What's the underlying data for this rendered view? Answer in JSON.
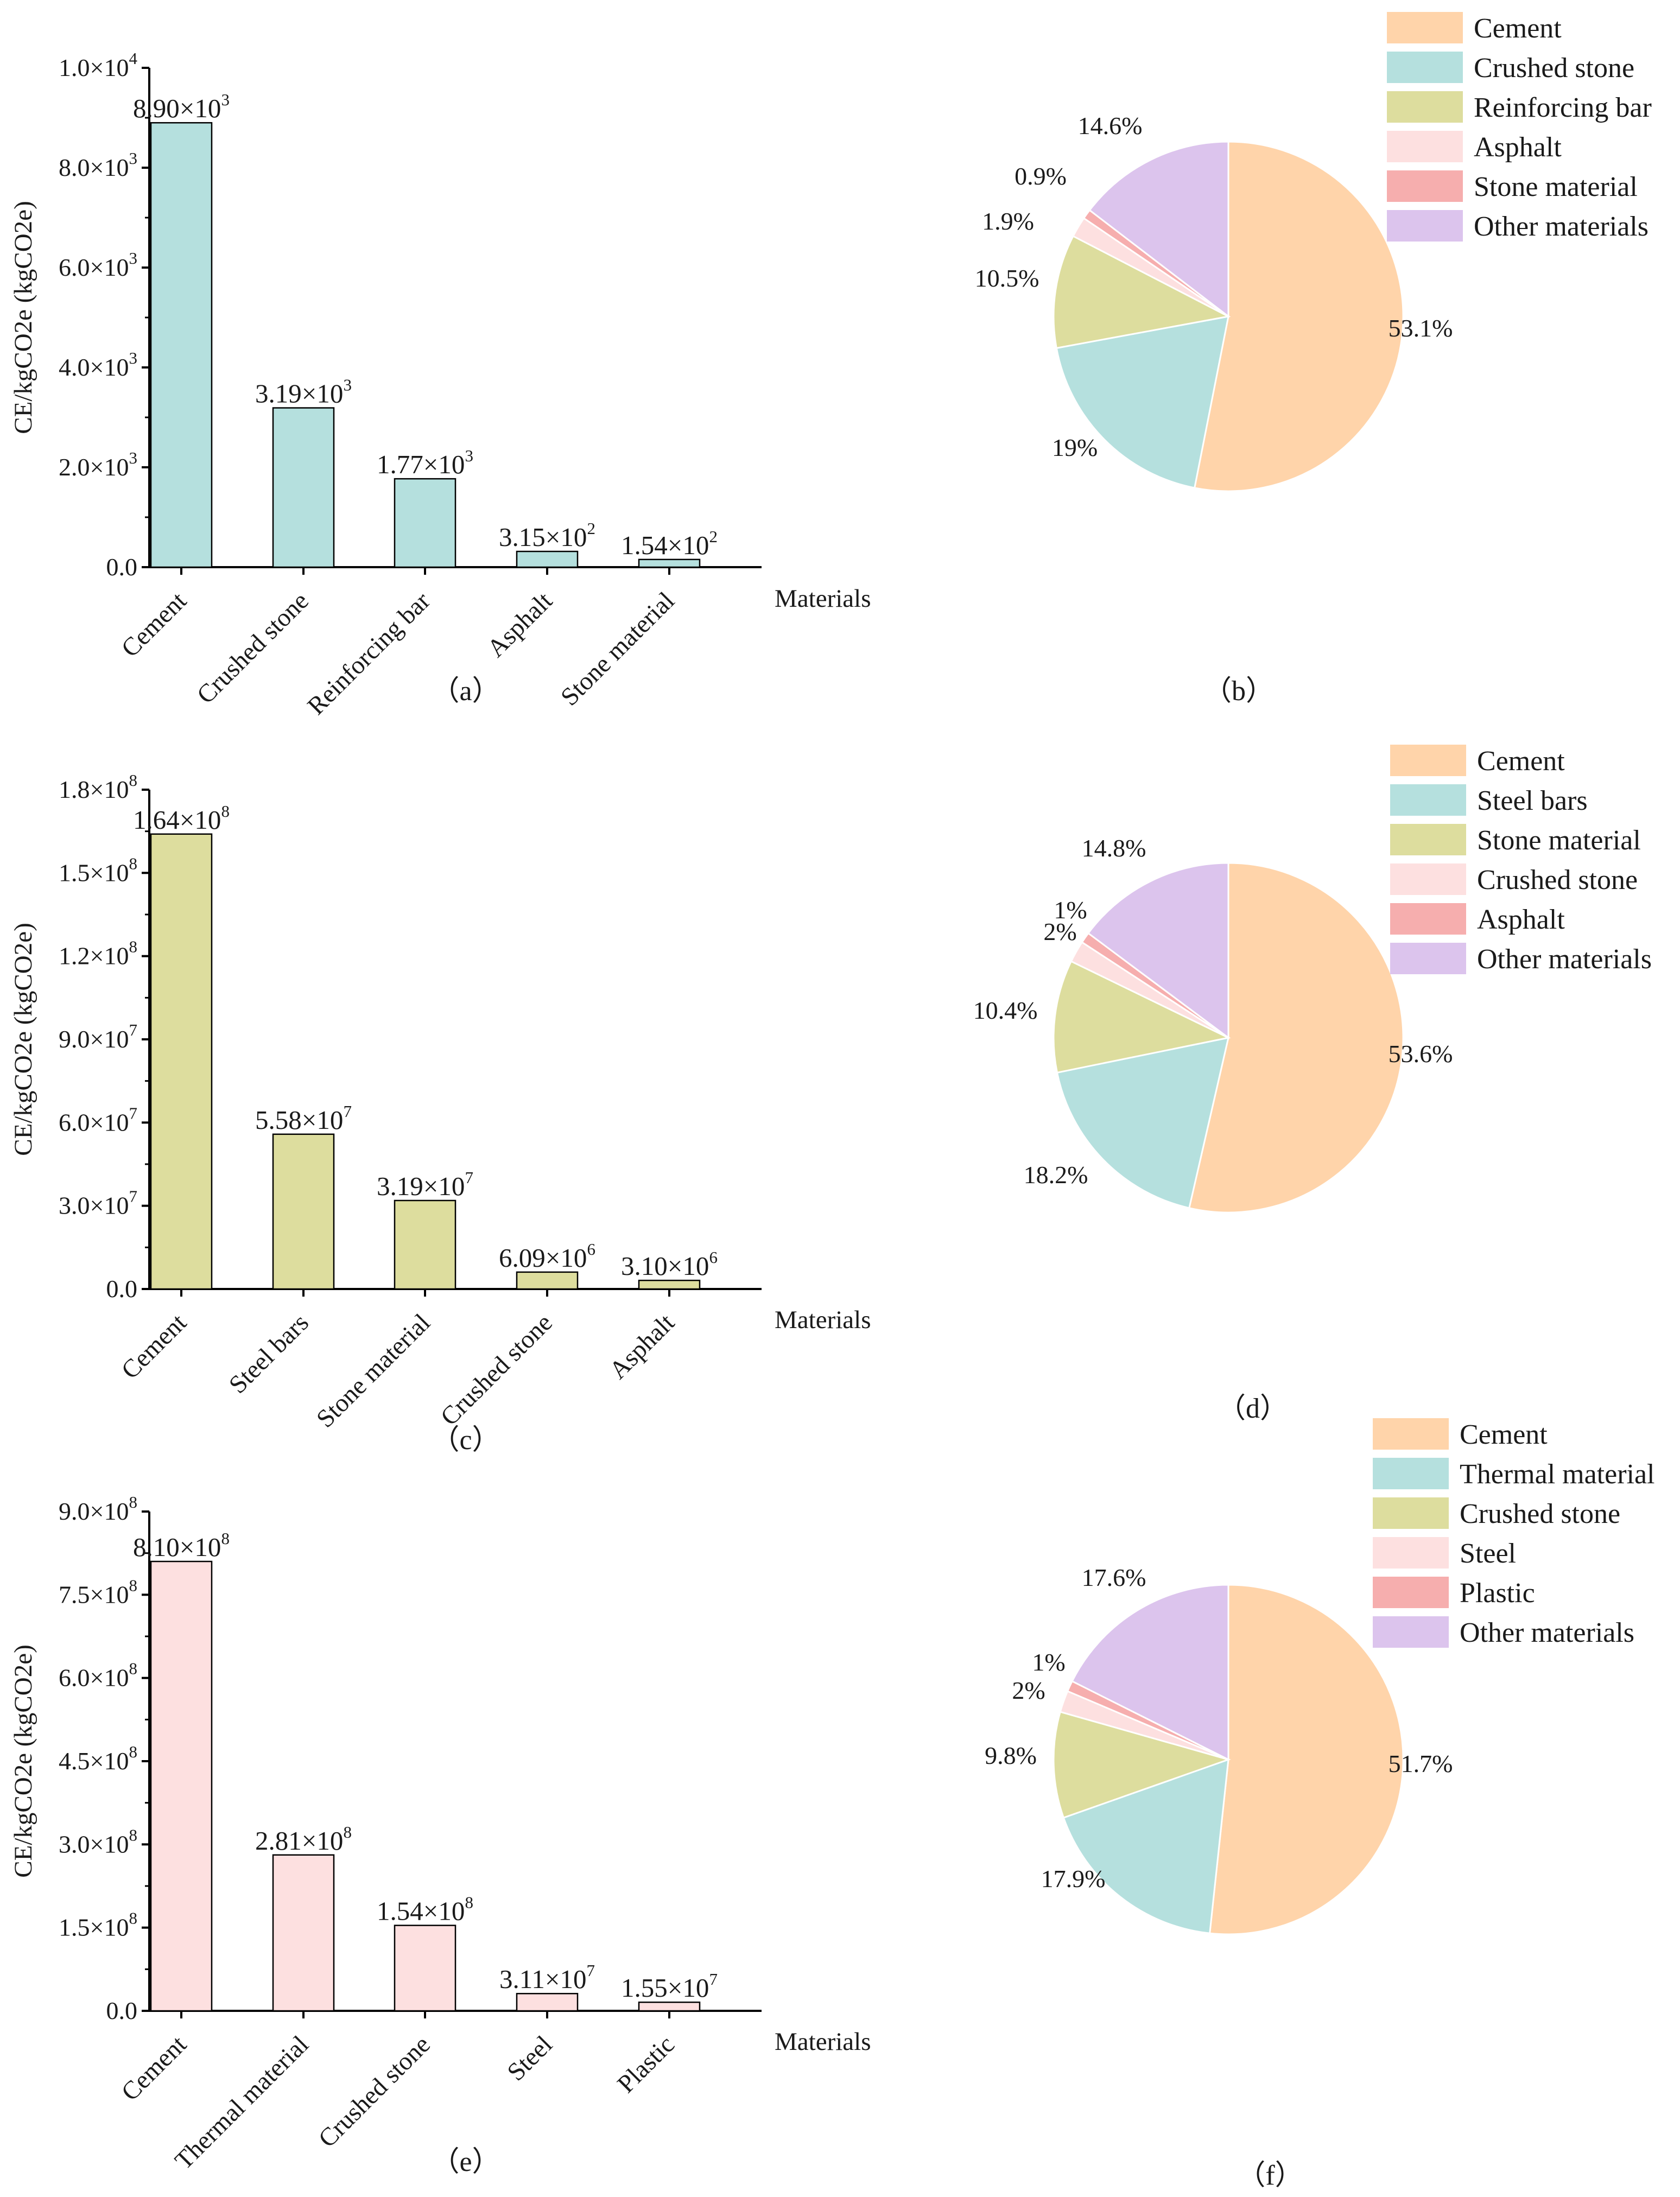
{
  "chart_data": [
    {
      "id": "a",
      "type": "bar",
      "panel_label": "（a）",
      "ylabel": "CE/kgCO2e (kgCO2e)",
      "xlabel": "Materials",
      "ylim": [
        0,
        10000
      ],
      "color": "#b5e0de",
      "yticks": [
        {
          "mant": "0.0",
          "exp": ""
        },
        {
          "mant": "2.0×10",
          "exp": "3"
        },
        {
          "mant": "4.0×10",
          "exp": "3"
        },
        {
          "mant": "6.0×10",
          "exp": "3"
        },
        {
          "mant": "8.0×10",
          "exp": "3"
        },
        {
          "mant": "1.0×10",
          "exp": "4"
        }
      ],
      "categories": [
        "Cement",
        "Crushed stone",
        "Reinforcing bar",
        "Asphalt",
        "Stone material"
      ],
      "values": [
        8900,
        3190,
        1770,
        315,
        154
      ],
      "data_labels": [
        {
          "mant": "8.90×10",
          "exp": "3"
        },
        {
          "mant": "3.19×10",
          "exp": "3"
        },
        {
          "mant": "1.77×10",
          "exp": "3"
        },
        {
          "mant": "3.15×10",
          "exp": "2"
        },
        {
          "mant": "1.54×10",
          "exp": "2"
        }
      ]
    },
    {
      "id": "b",
      "type": "pie",
      "panel_label": "（b）",
      "slices": [
        {
          "label": "Cement",
          "value": 53.1,
          "text": "53.1%",
          "color": "#ffd4aa"
        },
        {
          "label": "Crushed stone",
          "value": 19,
          "text": "19%",
          "color": "#b5e0de"
        },
        {
          "label": "Reinforcing bar",
          "value": 10.5,
          "text": "10.5%",
          "color": "#dddd9e"
        },
        {
          "label": "Asphalt",
          "value": 1.9,
          "text": "1.9%",
          "color": "#fde0e0"
        },
        {
          "label": "Stone material",
          "value": 0.9,
          "text": "0.9%",
          "color": "#f6aeae"
        },
        {
          "label": "Other materials",
          "value": 14.6,
          "text": "14.6%",
          "color": "#dcc4ed"
        }
      ]
    },
    {
      "id": "c",
      "type": "bar",
      "panel_label": "（c）",
      "ylabel": "CE/kgCO2e (kgCO2e)",
      "xlabel": "Materials",
      "ylim": [
        0,
        180000000
      ],
      "color": "#dddd9e",
      "yticks": [
        {
          "mant": "0.0",
          "exp": ""
        },
        {
          "mant": "3.0×10",
          "exp": "7"
        },
        {
          "mant": "6.0×10",
          "exp": "7"
        },
        {
          "mant": "9.0×10",
          "exp": "7"
        },
        {
          "mant": "1.2×10",
          "exp": "8"
        },
        {
          "mant": "1.5×10",
          "exp": "8"
        },
        {
          "mant": "1.8×10",
          "exp": "8"
        }
      ],
      "categories": [
        "Cement",
        "Steel bars",
        "Stone material",
        "Crushed stone",
        "Asphalt"
      ],
      "values": [
        164000000,
        55800000,
        31900000,
        6090000,
        3100000
      ],
      "data_labels": [
        {
          "mant": "1.64×10",
          "exp": "8"
        },
        {
          "mant": "5.58×10",
          "exp": "7"
        },
        {
          "mant": "3.19×10",
          "exp": "7"
        },
        {
          "mant": "6.09×10",
          "exp": "6"
        },
        {
          "mant": "3.10×10",
          "exp": "6"
        }
      ]
    },
    {
      "id": "d",
      "type": "pie",
      "panel_label": "（d）",
      "slices": [
        {
          "label": "Cement",
          "value": 53.6,
          "text": "53.6%",
          "color": "#ffd4aa"
        },
        {
          "label": "Steel bars",
          "value": 18.2,
          "text": "18.2%",
          "color": "#b5e0de"
        },
        {
          "label": "Stone material",
          "value": 10.4,
          "text": "10.4%",
          "color": "#dddd9e"
        },
        {
          "label": "Crushed stone",
          "value": 2,
          "text": "2%",
          "color": "#fde0e0"
        },
        {
          "label": "Asphalt",
          "value": 1,
          "text": "1%",
          "color": "#f6aeae"
        },
        {
          "label": "Other materials",
          "value": 14.8,
          "text": "14.8%",
          "color": "#dcc4ed"
        }
      ]
    },
    {
      "id": "e",
      "type": "bar",
      "panel_label": "（e）",
      "ylabel": "CE/kgCO2e (kgCO2e)",
      "xlabel": "Materials",
      "ylim": [
        0,
        900000000
      ],
      "color": "#fde0e0",
      "yticks": [
        {
          "mant": "0.0",
          "exp": ""
        },
        {
          "mant": "1.5×10",
          "exp": "8"
        },
        {
          "mant": "3.0×10",
          "exp": "8"
        },
        {
          "mant": "4.5×10",
          "exp": "8"
        },
        {
          "mant": "6.0×10",
          "exp": "8"
        },
        {
          "mant": "7.5×10",
          "exp": "8"
        },
        {
          "mant": "9.0×10",
          "exp": "8"
        }
      ],
      "categories": [
        "Cement",
        "Thermal material",
        "Crushed stone",
        "Steel",
        "Plastic"
      ],
      "values": [
        810000000,
        281000000,
        154000000,
        31100000,
        15500000
      ],
      "data_labels": [
        {
          "mant": "8.10×10",
          "exp": "8"
        },
        {
          "mant": "2.81×10",
          "exp": "8"
        },
        {
          "mant": "1.54×10",
          "exp": "8"
        },
        {
          "mant": "3.11×10",
          "exp": "7"
        },
        {
          "mant": "1.55×10",
          "exp": "7"
        }
      ]
    },
    {
      "id": "f",
      "type": "pie",
      "panel_label": "（f）",
      "slices": [
        {
          "label": "Cement",
          "value": 51.7,
          "text": "51.7%",
          "color": "#ffd4aa"
        },
        {
          "label": "Thermal material",
          "value": 17.9,
          "text": "17.9%",
          "color": "#b5e0de"
        },
        {
          "label": "Crushed stone",
          "value": 9.8,
          "text": "9.8%",
          "color": "#dddd9e"
        },
        {
          "label": "Steel",
          "value": 2,
          "text": "2%",
          "color": "#fde0e0"
        },
        {
          "label": "Plastic",
          "value": 1,
          "text": "1%",
          "color": "#f6aeae"
        },
        {
          "label": "Other materials",
          "value": 17.6,
          "text": "17.6%",
          "color": "#dcc4ed"
        }
      ]
    }
  ]
}
